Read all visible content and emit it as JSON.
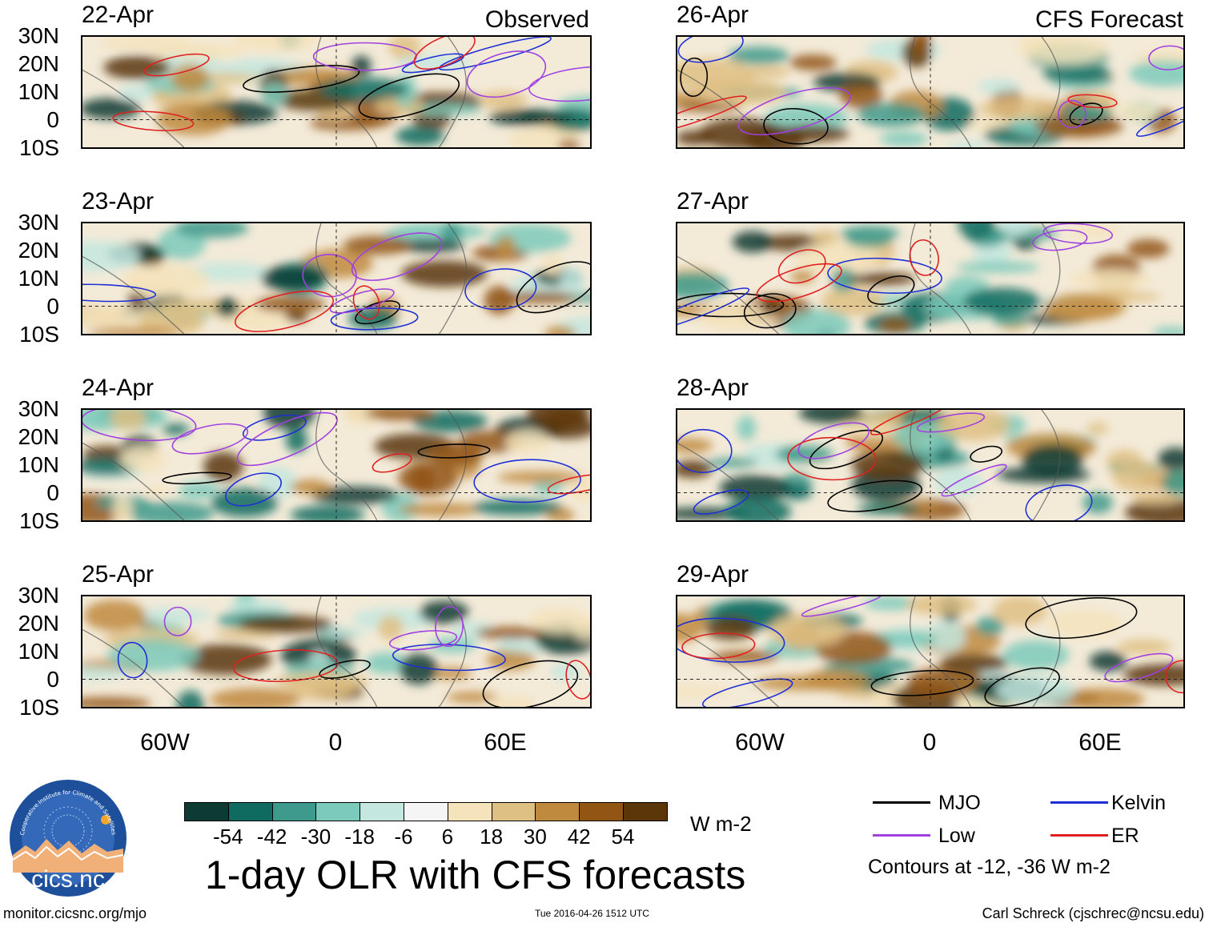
{
  "headers": {
    "observed": "Observed",
    "forecast": "CFS Forecast"
  },
  "panels_observed": [
    {
      "date": "22-Apr"
    },
    {
      "date": "23-Apr"
    },
    {
      "date": "24-Apr"
    },
    {
      "date": "25-Apr"
    }
  ],
  "panels_forecast": [
    {
      "date": "26-Apr"
    },
    {
      "date": "27-Apr"
    },
    {
      "date": "28-Apr"
    },
    {
      "date": "29-Apr"
    }
  ],
  "lat_labels": [
    "30N",
    "20N",
    "10N",
    "0",
    "10S"
  ],
  "lon_labels": [
    "60W",
    "0",
    "60E"
  ],
  "colorbar": {
    "colors": [
      "#0b3b33",
      "#0f6b5f",
      "#3e9a8c",
      "#7ccabb",
      "#c4e8df",
      "#f5f5f5",
      "#f4e3bb",
      "#dfc084",
      "#c08a3e",
      "#925514",
      "#5a3608"
    ],
    "ticks": [
      "-54",
      "-42",
      "-30",
      "-18",
      "-6",
      "6",
      "18",
      "30",
      "42",
      "54"
    ],
    "units": "W m-2"
  },
  "legend": {
    "items": [
      {
        "label": "MJO",
        "color": "#000000"
      },
      {
        "label": "Kelvin",
        "color": "#1f2fd6"
      },
      {
        "label": "Low",
        "color": "#a040e0"
      },
      {
        "label": "ER",
        "color": "#e02020"
      }
    ],
    "note": "Contours at -12, -36 W m-2"
  },
  "title": "1-day OLR with CFS forecasts",
  "logo_text": "cics.nc",
  "logo_ring_text": "Cooperative Institute for Climate and Satellites",
  "footer": {
    "left": "monitor.cicsnc.org/mjo",
    "center": "Tue 2016-04-26 1512 UTC",
    "right": "Carl Schreck (cjschrec@ncsu.edu)"
  }
}
